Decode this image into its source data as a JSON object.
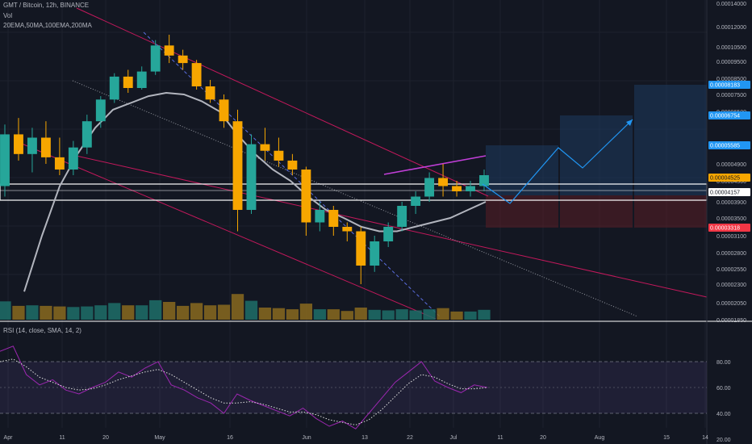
{
  "header": {
    "title": "GMT / Bitcoin, 12h, BINANCE",
    "volume_label": "Vol",
    "ema_label": "20EMA,50MA,100EMA,200MA",
    "rsi_label": "RSI (14, close, SMA, 14, 2)"
  },
  "chart_data": {
    "type": "line",
    "title": "GMT / Bitcoin, 12h, BINANCE",
    "xlabel": "",
    "ylabel": "",
    "x_ticks": [
      "Apr",
      "11",
      "20",
      "May",
      "16",
      "Jun",
      "13",
      "22",
      "Jul",
      "11",
      "20",
      "Aug",
      "15",
      "14"
    ],
    "y_ticks": [
      "0.00014000",
      "0.00012000",
      "0.00010500",
      "0.00009500",
      "0.00008500",
      "0.00007500",
      "0.00006500",
      "0.00004900",
      "0.00004300",
      "0.00003900",
      "0.00003500",
      "0.00003100",
      "0.00002800",
      "0.00002550",
      "0.00002300",
      "0.00002050",
      "0.00001850"
    ],
    "ylim": [
      1.85e-05,
      0.00014
    ],
    "price_tags": [
      {
        "label": "0.00008183",
        "value": 8.183e-05,
        "color": "#2196f3"
      },
      {
        "label": "0.00006754",
        "value": 6.754e-05,
        "color": "#2196f3"
      },
      {
        "label": "0.00005585",
        "value": 5.585e-05,
        "color": "#2196f3"
      },
      {
        "label": "0.00004525",
        "value": 4.525e-05,
        "color": "#f7a600"
      },
      {
        "label": "0.00004157",
        "value": 4.157e-05,
        "color": "#ffffff"
      },
      {
        "label": "0.00003318",
        "value": 3.318e-05,
        "color": "#f23645"
      }
    ],
    "candles": [
      [
        4.2e-05,
        6.1e-05,
        4e-05,
        5.8e-05
      ],
      [
        5.8e-05,
        6.3e-05,
        5e-05,
        5.2e-05
      ],
      [
        5.2e-05,
        6e-05,
        4.6e-05,
        5.7e-05
      ],
      [
        5.7e-05,
        6.2e-05,
        4.9e-05,
        5.1e-05
      ],
      [
        5.1e-05,
        5.7e-05,
        4.5e-05,
        4.7e-05
      ],
      [
        4.7e-05,
        5.6e-05,
        4.5e-05,
        5.4e-05
      ],
      [
        5.4e-05,
        6.4e-05,
        5.2e-05,
        6.2e-05
      ],
      [
        6.2e-05,
        7.4e-05,
        6e-05,
        7.2e-05
      ],
      [
        7.2e-05,
        8.8e-05,
        7e-05,
        8.6e-05
      ],
      [
        8.6e-05,
        9e-05,
        7.6e-05,
        7.9e-05
      ],
      [
        7.9e-05,
        9.2e-05,
        7.8e-05,
        8.9e-05
      ],
      [
        8.9e-05,
        0.00011,
        8.7e-05,
        0.000106
      ],
      [
        0.000106,
        0.000114,
        9.4e-05,
        9.9e-05
      ],
      [
        9.9e-05,
        0.000103,
        9e-05,
        9.4e-05
      ],
      [
        9.4e-05,
        9.6e-05,
        7.8e-05,
        8e-05
      ],
      [
        8e-05,
        8.4e-05,
        7e-05,
        7.2e-05
      ],
      [
        7.2e-05,
        7.5e-05,
        6e-05,
        6.2e-05
      ],
      [
        6.2e-05,
        6.6e-05,
        3.2e-05,
        3.7e-05
      ],
      [
        3.7e-05,
        5.8e-05,
        3.6e-05,
        5.5e-05
      ],
      [
        5.5e-05,
        6e-05,
        5e-05,
        5.3e-05
      ],
      [
        5.3e-05,
        5.7e-05,
        4.8e-05,
        5e-05
      ],
      [
        5e-05,
        5.2e-05,
        4.5e-05,
        4.7e-05
      ],
      [
        4.7e-05,
        4.8e-05,
        3.1e-05,
        3.4e-05
      ],
      [
        3.4e-05,
        3.9e-05,
        3.2e-05,
        3.7e-05
      ],
      [
        3.7e-05,
        3.8e-05,
        3.1e-05,
        3.3e-05
      ],
      [
        3.3e-05,
        3.4e-05,
        3e-05,
        3.2e-05
      ],
      [
        3.2e-05,
        3.3e-05,
        2.3e-05,
        2.6e-05
      ],
      [
        2.6e-05,
        3.1e-05,
        2.5e-05,
        3e-05
      ],
      [
        3e-05,
        3.4e-05,
        2.9e-05,
        3.3e-05
      ],
      [
        3.3e-05,
        3.9e-05,
        3.2e-05,
        3.8e-05
      ],
      [
        3.8e-05,
        4.1e-05,
        3.6e-05,
        4e-05
      ],
      [
        4e-05,
        4.6e-05,
        3.9e-05,
        4.4e-05
      ],
      [
        4.4e-05,
        4.9e-05,
        4e-05,
        4.2e-05
      ],
      [
        4.2e-05,
        4.3e-05,
        4e-05,
        4.1e-05
      ],
      [
        4.1e-05,
        4.3e-05,
        4e-05,
        4.2e-05
      ],
      [
        4.2e-05,
        4.7e-05,
        4.1e-05,
        4.5e-05
      ]
    ],
    "ema_curve": [
      2.2e-05,
      3.1e-05,
      4.2e-05,
      5.2e-05,
      6e-05,
      6.6e-05,
      7e-05,
      7.4e-05,
      7.6e-05,
      7.5e-05,
      7.1e-05,
      6.5e-05,
      5.8e-05,
      5.2e-05,
      4.7e-05,
      4.3e-05,
      4e-05,
      3.7e-05,
      3.5e-05,
      3.3e-05,
      3.2e-05,
      3.2e-05,
      3.3e-05,
      3.4e-05,
      3.5e-05,
      3.7e-05,
      3.9e-05
    ],
    "rsi": {
      "ylim": [
        20,
        100
      ],
      "ticks": [
        "80.00",
        "60.00",
        "40.00",
        "20.00"
      ],
      "bands": [
        70,
        50,
        30
      ],
      "values": [
        88,
        92,
        70,
        62,
        66,
        58,
        55,
        60,
        64,
        72,
        68,
        75,
        80,
        62,
        58,
        52,
        48,
        40,
        55,
        50,
        46,
        42,
        38,
        44,
        36,
        30,
        34,
        28,
        40,
        52,
        64,
        72,
        80,
        65,
        60,
        56,
        62,
        60
      ],
      "signal": [
        80,
        82,
        76,
        68,
        64,
        60,
        58,
        59,
        62,
        66,
        69,
        72,
        74,
        70,
        64,
        58,
        52,
        48,
        48,
        49,
        47,
        44,
        41,
        41,
        39,
        35,
        33,
        31,
        35,
        43,
        53,
        63,
        70,
        68,
        63,
        59,
        59,
        60
      ]
    }
  }
}
